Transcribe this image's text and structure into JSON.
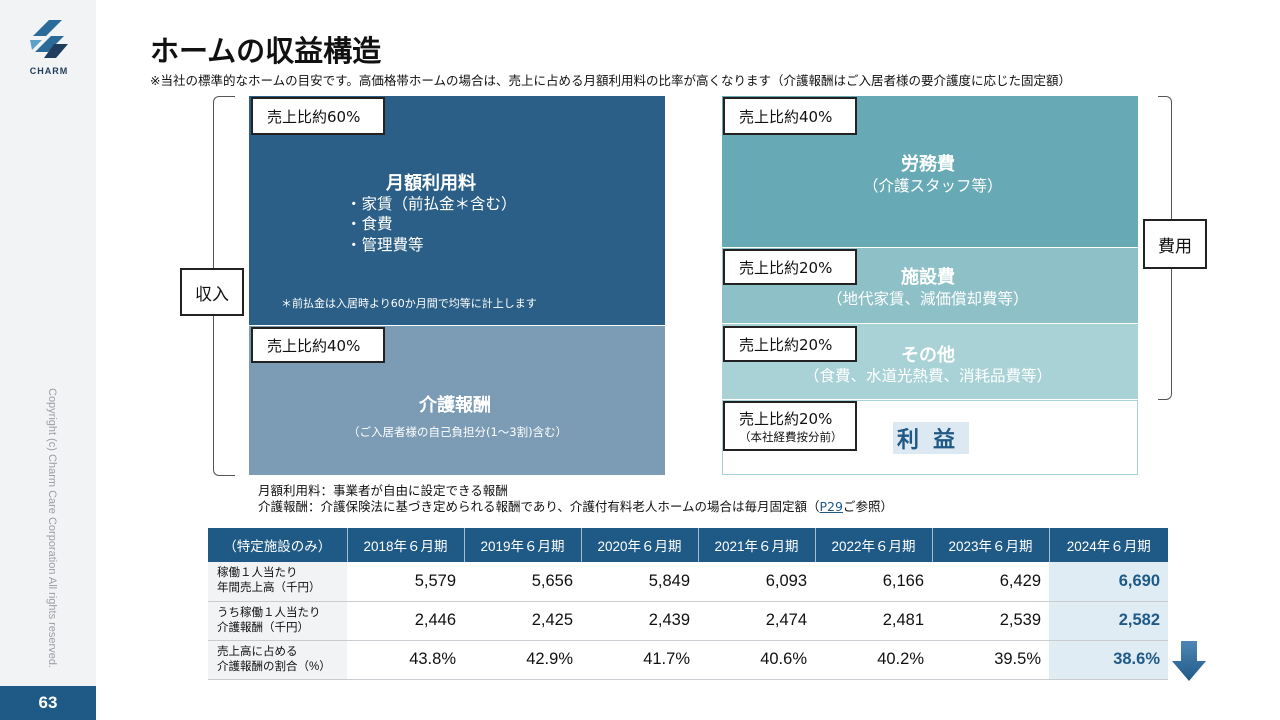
{
  "brand": {
    "name": "CHARM",
    "copyright": "Copyright (c) Charm Care Corporation All rights reserved."
  },
  "page_number": "63",
  "title": "ホームの収益構造",
  "subtitle": "※当社の標準的なホームの目安です。高価格帯ホームの場合は、売上に占める月額利用料の比率が高くなります（介護報酬はご入居者様の要介護度に応じた固定額）",
  "labels": {
    "income": "収入",
    "expense": "費用"
  },
  "income": {
    "monthly": {
      "ratio": "売上比約60%",
      "title": "月額利用料",
      "items": [
        "・家賃（前払金＊含む）",
        "・食費",
        "・管理費等"
      ],
      "footnote": "＊前払金は入居時より60か月間で均等に計上します"
    },
    "care": {
      "ratio": "売上比約40%",
      "title": "介護報酬",
      "sub": "（ご入居者様の自己負担分(1～3割)含む）"
    }
  },
  "expenses": {
    "labor": {
      "ratio": "売上比約40%",
      "title": "労務費",
      "sub": "（介護スタッフ等）"
    },
    "facility": {
      "ratio": "売上比約20%",
      "title": "施設費",
      "sub": "（地代家賃、減価償却費等）"
    },
    "other": {
      "ratio": "売上比約20%",
      "title": "その他",
      "sub": "（食費、水道光熱費、消耗品費等）"
    },
    "profit": {
      "ratio": "売上比約20%",
      "ratio_note": "（本社経費按分前）",
      "title": "利益"
    }
  },
  "notes": {
    "line1": "月額利用料：事業者が自由に設定できる報酬",
    "line2_prefix": "介護報酬：介護保険法に基づき定められる報酬であり、介護付有料老人ホームの場合は毎月固定額（",
    "line2_link": "P29",
    "line2_suffix": "ご参照）"
  },
  "table": {
    "header": [
      "（特定施設のみ）",
      "2018年６月期",
      "2019年６月期",
      "2020年６月期",
      "2021年６月期",
      "2022年６月期",
      "2023年６月期",
      "2024年６月期"
    ],
    "rows": [
      {
        "label1": "稼働１人当たり",
        "label2": "年間売上高（千円）",
        "values": [
          "5,579",
          "5,656",
          "5,849",
          "6,093",
          "6,166",
          "6,429",
          "6,690"
        ]
      },
      {
        "label1": "うち稼働１人当たり",
        "label2": "介護報酬（千円）",
        "values": [
          "2,446",
          "2,425",
          "2,439",
          "2,474",
          "2,481",
          "2,539",
          "2,582"
        ]
      },
      {
        "label1": "売上高に占める",
        "label2": "介護報酬の割合（%）",
        "values": [
          "43.8%",
          "42.9%",
          "41.7%",
          "40.6%",
          "40.2%",
          "39.5%",
          "38.6%"
        ]
      }
    ]
  },
  "colors": {
    "monthly": "#2b5f87",
    "care": "#7c9bb4",
    "labor": "#67a9b4",
    "facility": "#8ec0c7",
    "other": "#a8d2d6",
    "accent": "#1f5a87"
  },
  "icons": {
    "trend": "down-arrow-icon"
  }
}
